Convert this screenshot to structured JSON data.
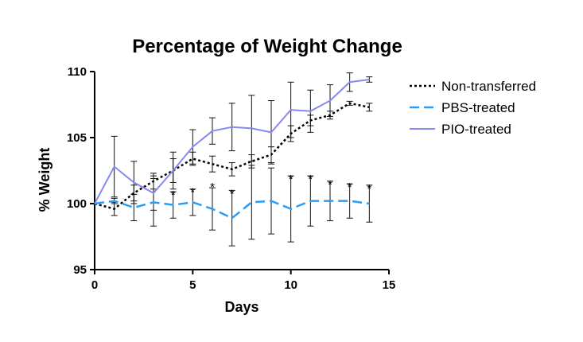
{
  "chart_data": {
    "type": "line",
    "title": "Percentage of Weight Change",
    "xlabel": "Days",
    "ylabel": "% Weight",
    "xlim": [
      0,
      15
    ],
    "ylim": [
      95,
      110
    ],
    "x_ticks": [
      0,
      5,
      10,
      15
    ],
    "y_ticks": [
      95,
      100,
      105,
      110
    ],
    "grid": false,
    "legend_position": "top-right",
    "x": [
      0,
      1,
      2,
      3,
      4,
      5,
      6,
      7,
      8,
      9,
      10,
      11,
      12,
      13,
      14
    ],
    "series": [
      {
        "name": "Non-transferred",
        "color": "#000000",
        "style": "dotted",
        "values": [
          100.0,
          99.6,
          100.8,
          101.7,
          102.5,
          103.4,
          103.0,
          102.6,
          103.2,
          103.7,
          105.3,
          106.3,
          106.7,
          107.6,
          107.3
        ],
        "errors": [
          0.0,
          0.5,
          0.6,
          0.6,
          0.9,
          0.5,
          0.6,
          0.5,
          0.5,
          0.6,
          0.6,
          0.4,
          0.3,
          0.15,
          0.3
        ]
      },
      {
        "name": "PBS-treated",
        "color": "#2a9df4",
        "style": "dashed",
        "values": [
          100.0,
          100.2,
          99.7,
          100.1,
          99.9,
          100.1,
          99.6,
          98.9,
          100.1,
          100.2,
          99.6,
          100.2,
          100.2,
          100.2,
          100.0
        ],
        "errors": [
          0.0,
          0.2,
          1.0,
          1.8,
          1.0,
          1.0,
          1.6,
          2.1,
          2.8,
          2.5,
          2.5,
          1.9,
          1.5,
          1.3,
          1.4
        ]
      },
      {
        "name": "PIO-treated",
        "color": "#8888ee",
        "style": "solid",
        "values": [
          100.0,
          102.8,
          101.6,
          100.8,
          102.5,
          104.3,
          105.5,
          105.8,
          105.7,
          105.4,
          107.1,
          107.0,
          107.8,
          109.2,
          109.4
        ],
        "errors": [
          0.0,
          2.3,
          1.6,
          1.3,
          1.4,
          1.3,
          1.0,
          1.8,
          2.5,
          2.4,
          2.1,
          1.6,
          1.2,
          0.7,
          0.2
        ]
      }
    ],
    "annotations": [
      {
        "text": "*",
        "x": 4,
        "y": 100.9
      },
      {
        "text": "*",
        "x": 5,
        "y": 101.1
      },
      {
        "text": "*",
        "x": 6,
        "y": 101.5
      },
      {
        "text": "*",
        "x": 7,
        "y": 101.0
      },
      {
        "text": "*",
        "x": 10,
        "y": 102.1
      },
      {
        "text": "*",
        "x": 11,
        "y": 102.1
      },
      {
        "text": "*",
        "x": 12,
        "y": 101.7
      },
      {
        "text": "*",
        "x": 13,
        "y": 101.5
      },
      {
        "text": "*",
        "x": 14,
        "y": 101.4
      }
    ]
  }
}
